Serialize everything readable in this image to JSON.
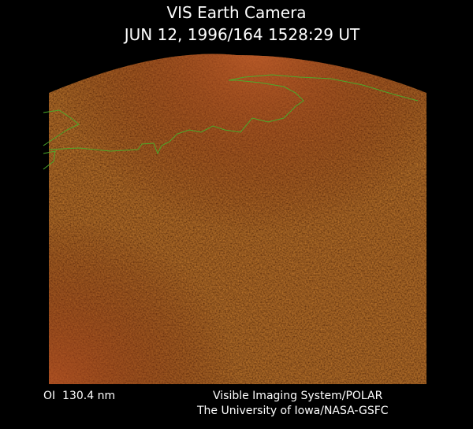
{
  "header": {
    "title": "VIS Earth Camera",
    "subtitle": "JUN 12, 1996/164 1528:29 UT"
  },
  "footer": {
    "filter": "OI  130.4 nm",
    "credit_1": "Visible Imaging System/POLAR",
    "credit_2": "The University of Iowa/NASA-GSFC"
  }
}
